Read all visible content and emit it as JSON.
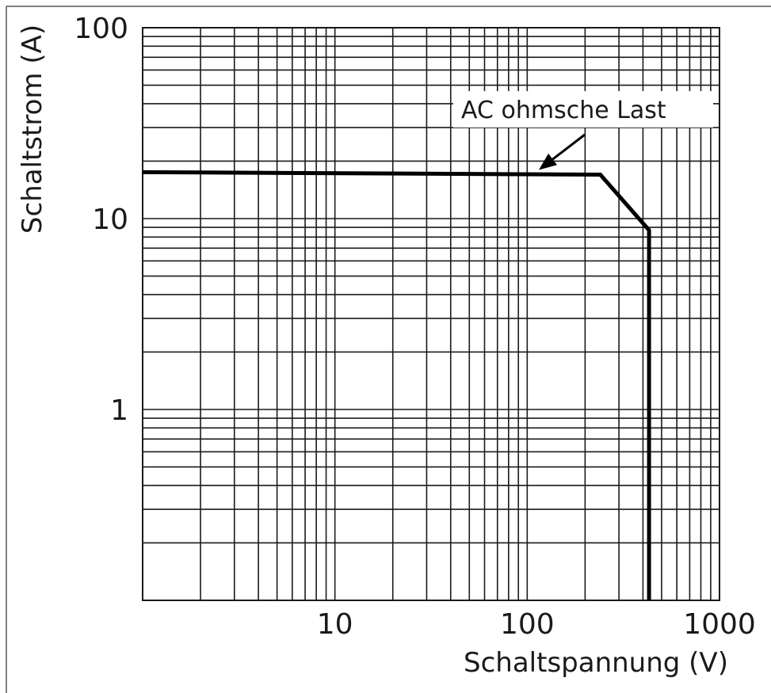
{
  "chart_data": {
    "type": "line",
    "title": "",
    "xlabel": "Schaltspannung (V)",
    "ylabel": "Schaltstrom (A)",
    "xscale": "log",
    "yscale": "log",
    "xlim": [
      1,
      1000
    ],
    "ylim": [
      0.1,
      100
    ],
    "grid": true,
    "x_tick_labels": [
      {
        "value": 10,
        "label": "10"
      },
      {
        "value": 100,
        "label": "100"
      },
      {
        "value": 1000,
        "label": "1000"
      }
    ],
    "y_tick_labels": [
      {
        "value": 100,
        "label": "100"
      },
      {
        "value": 10,
        "label": "10"
      },
      {
        "value": 1,
        "label": "1"
      }
    ],
    "series": [
      {
        "name": "AC ohmsche Last",
        "x": [
          1,
          240,
          430,
          430
        ],
        "y": [
          17.5,
          17,
          8.7,
          0.1
        ]
      }
    ],
    "annotations": [
      {
        "text": "AC ohmsche Last",
        "target_x": 115,
        "target_y": 17
      }
    ],
    "line_color": "#000000",
    "grid_color": "#1a1a1a"
  }
}
